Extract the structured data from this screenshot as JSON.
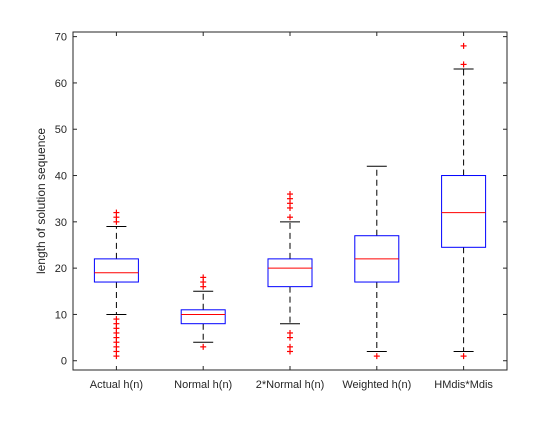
{
  "chart_data": {
    "type": "boxplot",
    "title": "",
    "xlabel": "",
    "ylabel": "length of solution sequence",
    "ylim": [
      -2,
      71
    ],
    "yticks": [
      0,
      10,
      20,
      30,
      40,
      50,
      60,
      70
    ],
    "grid": false,
    "legend": "none",
    "categories": [
      "Actual h(n)",
      "Normal h(n)",
      "2*Normal h(n)",
      "Weighted h(n)",
      "HMdis*Mdis"
    ],
    "boxes": [
      {
        "category": "Actual h(n)",
        "lower_whisker": 10,
        "q1": 17,
        "median": 19,
        "q3": 22,
        "upper_whisker": 29,
        "outliers": [
          1,
          2,
          3,
          4,
          5,
          6,
          7,
          8,
          9,
          30,
          31,
          32
        ]
      },
      {
        "category": "Normal h(n)",
        "lower_whisker": 4,
        "q1": 8,
        "median": 10,
        "q3": 11,
        "upper_whisker": 15,
        "outliers": [
          3,
          16,
          17,
          18
        ]
      },
      {
        "category": "2*Normal h(n)",
        "lower_whisker": 8,
        "q1": 16,
        "median": 20,
        "q3": 22,
        "upper_whisker": 30,
        "outliers": [
          2,
          3,
          5,
          6,
          31,
          33,
          34,
          35,
          36
        ]
      },
      {
        "category": "Weighted h(n)",
        "lower_whisker": 2,
        "q1": 17,
        "median": 22,
        "q3": 27,
        "upper_whisker": 42,
        "outliers": [
          1
        ]
      },
      {
        "category": "HMdis*Mdis",
        "lower_whisker": 2,
        "q1": 24.5,
        "median": 32,
        "q3": 40,
        "upper_whisker": 63,
        "outliers": [
          1,
          64,
          68
        ]
      }
    ],
    "colors": {
      "box": "#0000ff",
      "median": "#ff0000",
      "whisker": "#000000",
      "outlier": "#ff0000",
      "axis": "#262626"
    }
  }
}
